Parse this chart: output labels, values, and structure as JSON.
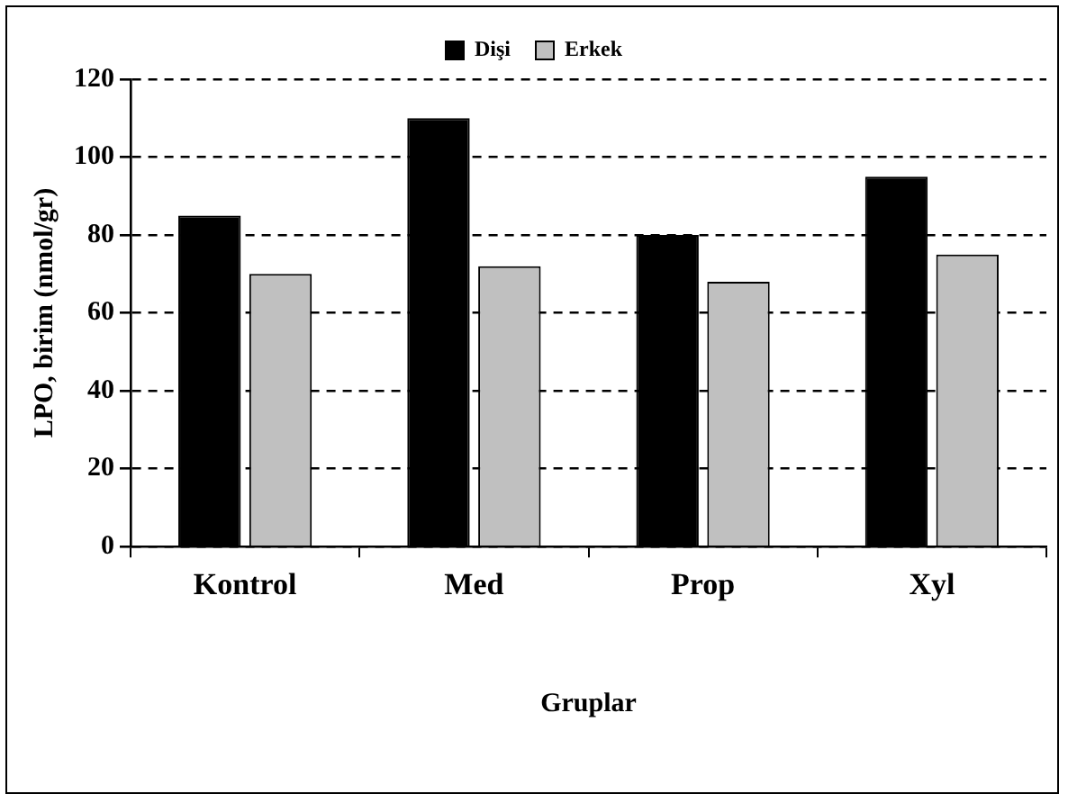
{
  "chart_data": {
    "type": "bar",
    "xlabel": "Gruplar",
    "ylabel": "LPO, birim (nmol/gr)",
    "categories": [
      "Kontrol",
      "Med",
      "Prop",
      "Xyl"
    ],
    "series": [
      {
        "name": "Dişi",
        "color": "#000000",
        "values": [
          85,
          110,
          80,
          95
        ]
      },
      {
        "name": "Erkek",
        "color": "#c0c0c0",
        "values": [
          70,
          72,
          68,
          75
        ]
      }
    ],
    "ylim": [
      0,
      120
    ],
    "yticks": [
      0,
      20,
      40,
      60,
      80,
      100,
      120
    ],
    "grid": "y",
    "legend": "top"
  }
}
